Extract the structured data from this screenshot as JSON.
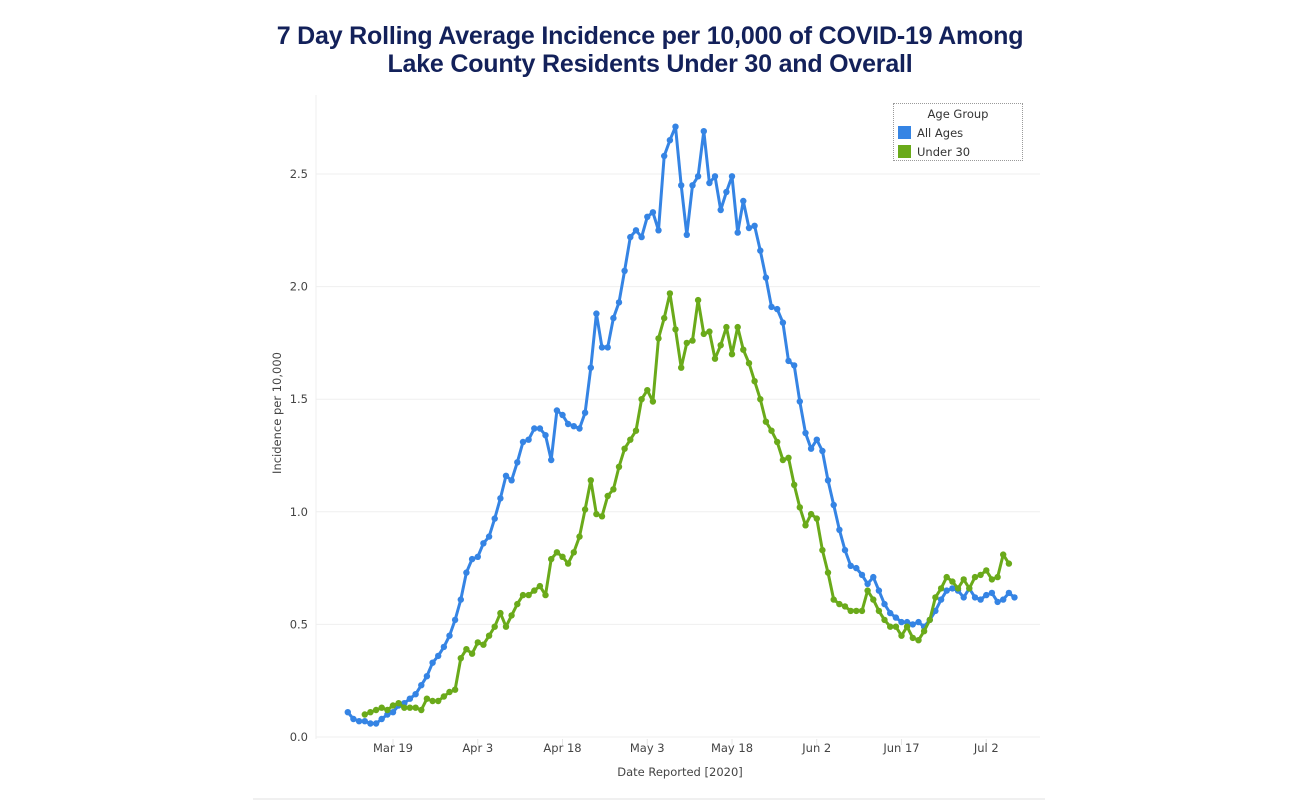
{
  "chart_data": {
    "type": "line",
    "title": [
      "7 Day Rolling Average Incidence per 10,000 of COVID-19 Among",
      "Lake County Residents Under 30 and Overall"
    ],
    "xlabel": "Date Reported [2020]",
    "ylabel": "Incidence per 10,000",
    "ylim": [
      0,
      2.85
    ],
    "yticks": [
      0.0,
      0.5,
      1.0,
      1.5,
      2.0,
      2.5
    ],
    "ytick_labels": [
      "0.0",
      "0.5",
      "1.0",
      "1.5",
      "2.0",
      "2.5"
    ],
    "xticks": [
      "2020-03-19",
      "2020-04-03",
      "2020-04-18",
      "2020-05-03",
      "2020-05-18",
      "2020-06-02",
      "2020-06-17",
      "2020-07-02"
    ],
    "xtick_labels": [
      "Mar 19",
      "Apr 3",
      "Apr 18",
      "May 3",
      "May 18",
      "Jun 2",
      "Jun 17",
      "Jul 2"
    ],
    "xlim": [
      "2020-03-07",
      "2020-07-14"
    ],
    "grid": true,
    "legend": {
      "title": "Age Group",
      "placement": "top-right"
    },
    "series": [
      {
        "name": "All Ages",
        "color": "#3584e4",
        "start_date": "2020-03-11",
        "values": [
          0.11,
          0.08,
          0.07,
          0.07,
          0.06,
          0.06,
          0.08,
          0.1,
          0.11,
          0.14,
          0.15,
          0.17,
          0.19,
          0.23,
          0.27,
          0.33,
          0.36,
          0.4,
          0.45,
          0.52,
          0.61,
          0.73,
          0.79,
          0.8,
          0.86,
          0.89,
          0.97,
          1.06,
          1.16,
          1.14,
          1.22,
          1.31,
          1.32,
          1.37,
          1.37,
          1.34,
          1.23,
          1.45,
          1.43,
          1.39,
          1.38,
          1.37,
          1.44,
          1.64,
          1.88,
          1.73,
          1.73,
          1.86,
          1.93,
          2.07,
          2.22,
          2.25,
          2.22,
          2.31,
          2.33,
          2.25,
          2.58,
          2.65,
          2.71,
          2.45,
          2.23,
          2.45,
          2.49,
          2.69,
          2.46,
          2.49,
          2.34,
          2.42,
          2.49,
          2.24,
          2.38,
          2.26,
          2.27,
          2.16,
          2.04,
          1.91,
          1.9,
          1.84,
          1.67,
          1.65,
          1.49,
          1.35,
          1.28,
          1.32,
          1.27,
          1.14,
          1.03,
          0.92,
          0.83,
          0.76,
          0.75,
          0.72,
          0.68,
          0.71,
          0.65,
          0.59,
          0.55,
          0.53,
          0.51,
          0.51,
          0.5,
          0.51,
          0.49,
          0.52,
          0.56,
          0.61,
          0.65,
          0.66,
          0.65,
          0.62,
          0.66,
          0.62,
          0.61,
          0.63,
          0.64,
          0.6,
          0.61,
          0.64,
          0.62
        ]
      },
      {
        "name": "Under 30",
        "color": "#6aaa1a",
        "start_date": "2020-03-14",
        "values": [
          0.1,
          0.11,
          0.12,
          0.13,
          0.12,
          0.14,
          0.15,
          0.13,
          0.13,
          0.13,
          0.12,
          0.17,
          0.16,
          0.16,
          0.18,
          0.2,
          0.21,
          0.35,
          0.39,
          0.37,
          0.42,
          0.41,
          0.45,
          0.49,
          0.55,
          0.49,
          0.54,
          0.59,
          0.63,
          0.63,
          0.65,
          0.67,
          0.63,
          0.79,
          0.82,
          0.8,
          0.77,
          0.82,
          0.89,
          1.01,
          1.14,
          0.99,
          0.98,
          1.07,
          1.1,
          1.2,
          1.28,
          1.32,
          1.36,
          1.5,
          1.54,
          1.49,
          1.77,
          1.86,
          1.97,
          1.81,
          1.64,
          1.75,
          1.76,
          1.94,
          1.79,
          1.8,
          1.68,
          1.74,
          1.82,
          1.7,
          1.82,
          1.72,
          1.66,
          1.58,
          1.5,
          1.4,
          1.36,
          1.31,
          1.23,
          1.24,
          1.12,
          1.02,
          0.94,
          0.99,
          0.97,
          0.83,
          0.73,
          0.61,
          0.59,
          0.58,
          0.56,
          0.56,
          0.56,
          0.65,
          0.61,
          0.56,
          0.52,
          0.49,
          0.49,
          0.45,
          0.49,
          0.44,
          0.43,
          0.47,
          0.52,
          0.62,
          0.66,
          0.71,
          0.69,
          0.66,
          0.7,
          0.66,
          0.71,
          0.72,
          0.74,
          0.7,
          0.71,
          0.81,
          0.77
        ]
      }
    ]
  }
}
